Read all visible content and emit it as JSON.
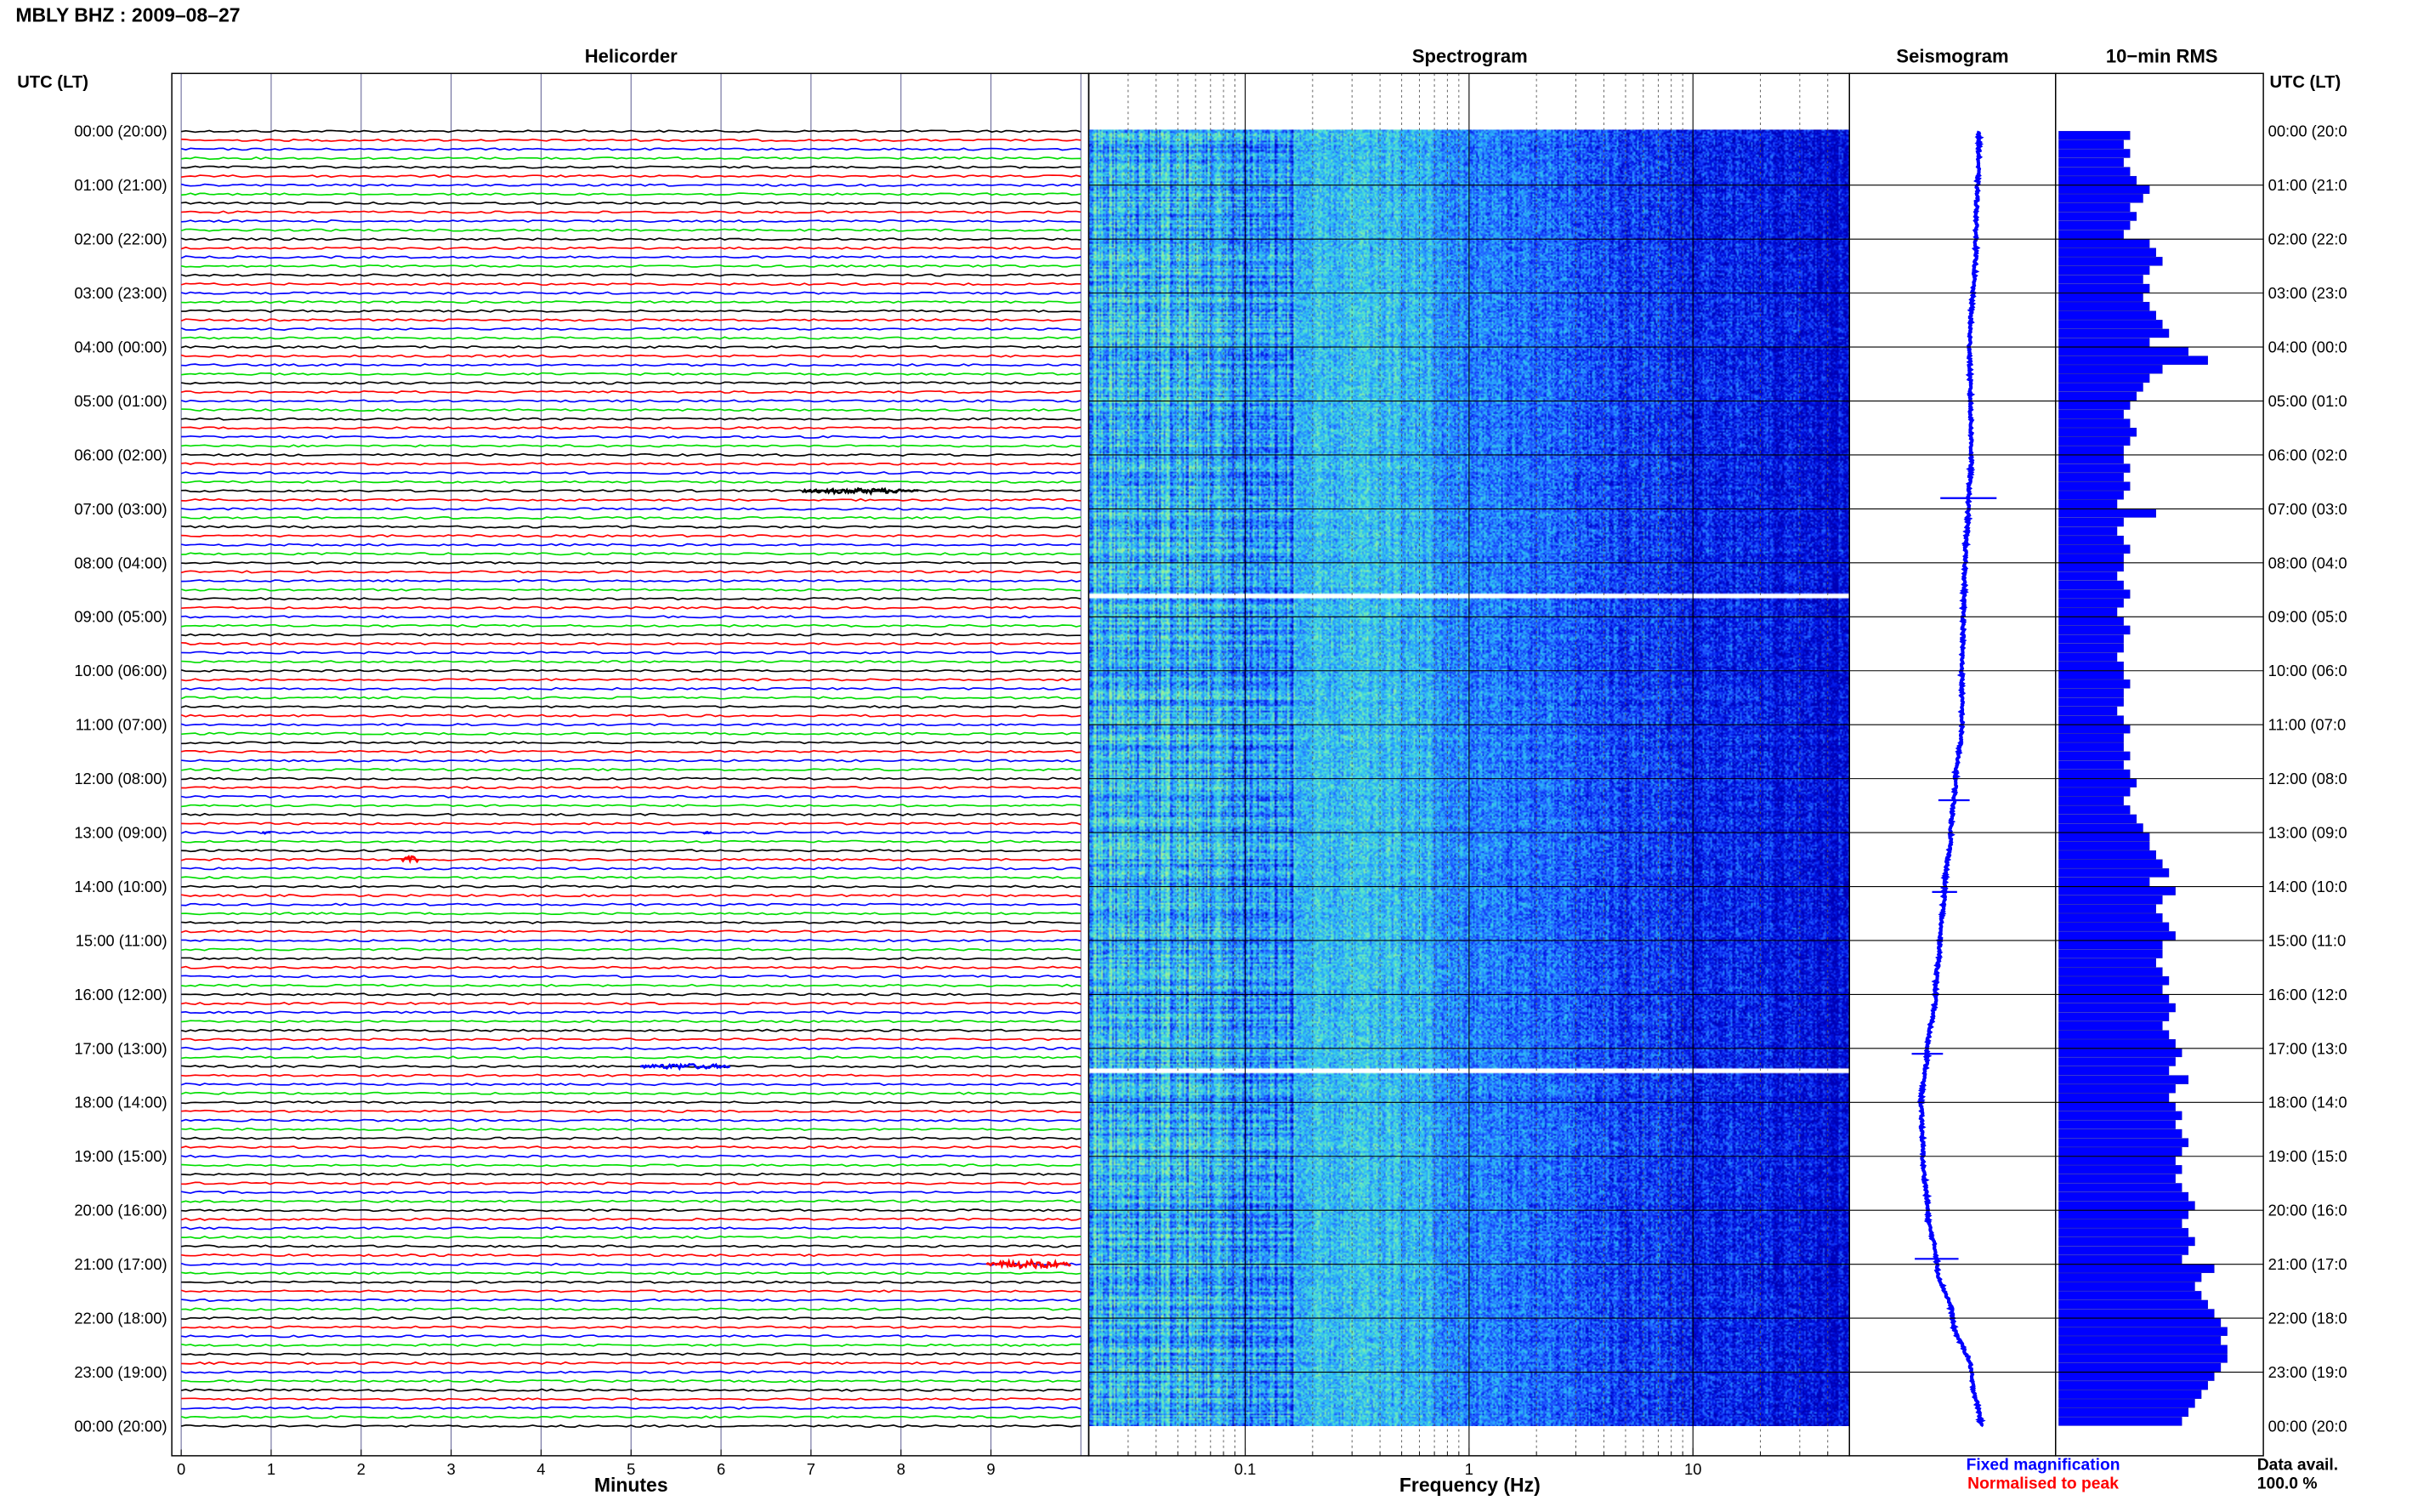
{
  "chart_data": {
    "title": "MBLY BHZ : 2009–08–27",
    "time_axis_left_header": "UTC (LT)",
    "time_axis_right_header": "UTC (LT)",
    "time_labels": [
      "00:00 (20:00)",
      "01:00 (21:00)",
      "02:00 (22:00)",
      "03:00 (23:00)",
      "04:00 (00:00)",
      "05:00 (01:00)",
      "06:00 (02:00)",
      "07:00 (03:00)",
      "08:00 (04:00)",
      "09:00 (05:00)",
      "10:00 (06:00)",
      "11:00 (07:00)",
      "12:00 (08:00)",
      "13:00 (09:00)",
      "14:00 (10:00)",
      "15:00 (11:00)",
      "16:00 (12:00)",
      "17:00 (13:00)",
      "18:00 (14:00)",
      "19:00 (15:00)",
      "20:00 (16:00)",
      "21:00 (17:00)",
      "22:00 (18:00)",
      "23:00 (19:00)",
      "00:00 (20:00)"
    ],
    "right_time_labels": [
      "00:00 (20:0",
      "01:00 (21:0",
      "02:00 (22:0",
      "03:00 (23:0",
      "04:00 (00:0",
      "05:00 (01:0",
      "06:00 (02:0",
      "07:00 (03:0",
      "08:00 (04:0",
      "09:00 (05:0",
      "10:00 (06:0",
      "11:00 (07:0",
      "12:00 (08:0",
      "13:00 (09:0",
      "14:00 (10:0",
      "15:00 (11:0",
      "16:00 (12:0",
      "17:00 (13:0",
      "18:00 (14:0",
      "19:00 (15:0",
      "20:00 (16:0",
      "21:00 (17:0",
      "22:00 (18:0",
      "23:00 (19:0",
      "00:00 (20:0"
    ],
    "panels": {
      "helicorder": {
        "type": "line",
        "title": "Helicorder",
        "xlabel": "Minutes",
        "xticks": [
          "0",
          "1",
          "2",
          "3",
          "4",
          "5",
          "6",
          "7",
          "8",
          "9"
        ],
        "xlim": [
          0,
          10
        ],
        "traces_per_hour": 6,
        "trace_colors": [
          "#000000",
          "#ff0000",
          "#0000ff",
          "#00dd00"
        ],
        "events": [
          {
            "trace": 40,
            "minute_start": 6.9,
            "minute_end": 8.2,
            "amp": 1.6,
            "color": "#000000"
          },
          {
            "trace": 81,
            "minute_start": 2.45,
            "minute_end": 2.65,
            "amp": 2.0,
            "color": "#ff0000"
          },
          {
            "trace": 78,
            "minute_start": 0.9,
            "minute_end": 1.0,
            "amp": 0.8,
            "color": "#0000ff"
          },
          {
            "trace": 78,
            "minute_start": 5.8,
            "minute_end": 5.9,
            "amp": 0.8,
            "color": "#0000ff"
          },
          {
            "trace": 104,
            "minute_start": 5.1,
            "minute_end": 6.1,
            "amp": 1.6,
            "color": "#0000ff"
          },
          {
            "trace": 126,
            "minute_start": 8.95,
            "minute_end": 9.9,
            "amp": 2.4,
            "color": "#ff0000"
          }
        ]
      },
      "spectrogram": {
        "type": "heatmap",
        "title": "Spectrogram",
        "xlabel": "Frequency (Hz)",
        "xscale": "log",
        "xticks": [
          "0.1",
          "1",
          "10"
        ],
        "xlim": [
          0.02,
          50
        ],
        "colormap": [
          "#0000b4",
          "#0014e6",
          "#1e50ff",
          "#2896ff",
          "#32c8f0",
          "#5ae6c8",
          "#a0f096"
        ],
        "gaps_hours": [
          8.62,
          17.42
        ]
      },
      "seismogram": {
        "type": "line",
        "title": "Seismogram",
        "legend": [
          {
            "label": "Fixed magnification",
            "color": "#0000ff"
          },
          {
            "label": "Normalised to peak",
            "color": "#ff0000"
          }
        ]
      },
      "rms": {
        "type": "bar",
        "title": "10−min RMS",
        "bar_color": "#0000ff",
        "values": [
          0.55,
          0.5,
          0.55,
          0.5,
          0.55,
          0.6,
          0.7,
          0.65,
          0.55,
          0.6,
          0.55,
          0.5,
          0.7,
          0.75,
          0.8,
          0.7,
          0.65,
          0.7,
          0.65,
          0.7,
          0.75,
          0.8,
          0.85,
          0.7,
          1.0,
          1.15,
          0.8,
          0.7,
          0.65,
          0.6,
          0.55,
          0.5,
          0.55,
          0.6,
          0.55,
          0.5,
          0.5,
          0.55,
          0.5,
          0.55,
          0.5,
          0.45,
          0.75,
          0.5,
          0.45,
          0.5,
          0.55,
          0.5,
          0.5,
          0.45,
          0.5,
          0.55,
          0.5,
          0.45,
          0.5,
          0.55,
          0.5,
          0.5,
          0.45,
          0.5,
          0.5,
          0.55,
          0.5,
          0.5,
          0.45,
          0.5,
          0.55,
          0.5,
          0.5,
          0.55,
          0.5,
          0.55,
          0.6,
          0.55,
          0.5,
          0.55,
          0.6,
          0.65,
          0.7,
          0.7,
          0.75,
          0.8,
          0.85,
          0.7,
          0.9,
          0.8,
          0.75,
          0.8,
          0.85,
          0.9,
          0.8,
          0.8,
          0.75,
          0.8,
          0.85,
          0.8,
          0.85,
          0.9,
          0.85,
          0.8,
          0.85,
          0.9,
          0.95,
          0.9,
          0.85,
          1.0,
          0.9,
          0.85,
          0.9,
          0.95,
          0.9,
          0.95,
          1.0,
          0.95,
          0.9,
          0.95,
          0.9,
          0.95,
          1.0,
          1.05,
          1.0,
          0.95,
          1.0,
          1.05,
          1.0,
          0.95,
          1.2,
          1.1,
          1.05,
          1.1,
          1.15,
          1.2,
          1.25,
          1.3,
          1.25,
          1.3,
          1.3,
          1.25,
          1.2,
          1.15,
          1.1,
          1.05,
          1.0,
          0.95
        ],
        "xlim": [
          0,
          1.35
        ]
      }
    },
    "footer": {
      "data_avail_label": "Data avail.",
      "data_avail_value": "100.0 %"
    }
  }
}
